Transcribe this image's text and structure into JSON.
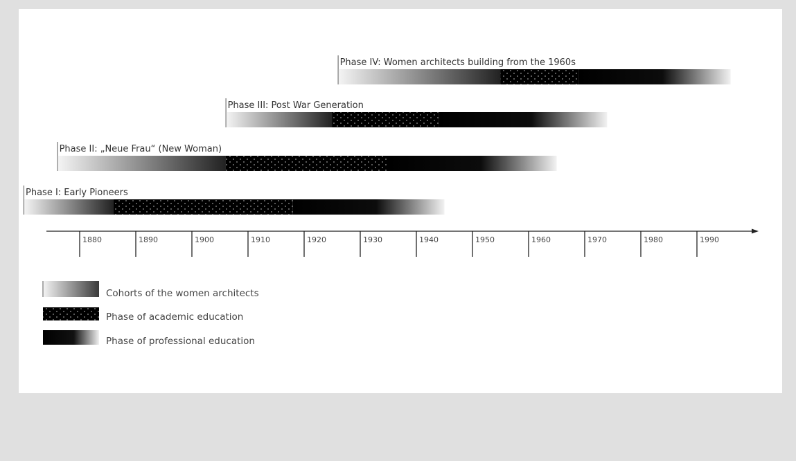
{
  "phases": [
    {
      "label": "Phase I: Early Pioneers",
      "cohort_start": 1870,
      "academic_start": 1886,
      "academic_end": 1918,
      "professional_end": 1945
    },
    {
      "label": "Phase II: „Neue Frau“ (New Woman)",
      "cohort_start": 1876,
      "academic_start": 1906,
      "academic_end": 1935,
      "professional_end": 1965
    },
    {
      "label": "Phase III: Post War Generation",
      "cohort_start": 1906,
      "academic_start": 1925,
      "academic_end": 1944,
      "professional_end": 1974
    },
    {
      "label": "Phase IV: Women architects building from the 1960s",
      "cohort_start": 1926,
      "academic_start": 1955,
      "academic_end": 1969,
      "professional_end": 1996
    }
  ],
  "axis": {
    "ticks": [
      "1880",
      "1890",
      "1900",
      "1910",
      "1920",
      "1930",
      "1940",
      "1950",
      "1960",
      "1970",
      "1980",
      "1990"
    ]
  },
  "legend": [
    {
      "key": "cohort",
      "label": "Cohorts of the women architects"
    },
    {
      "key": "academic",
      "label": "Phase of academic education"
    },
    {
      "key": "professional",
      "label": "Phase of professional education"
    }
  ]
}
